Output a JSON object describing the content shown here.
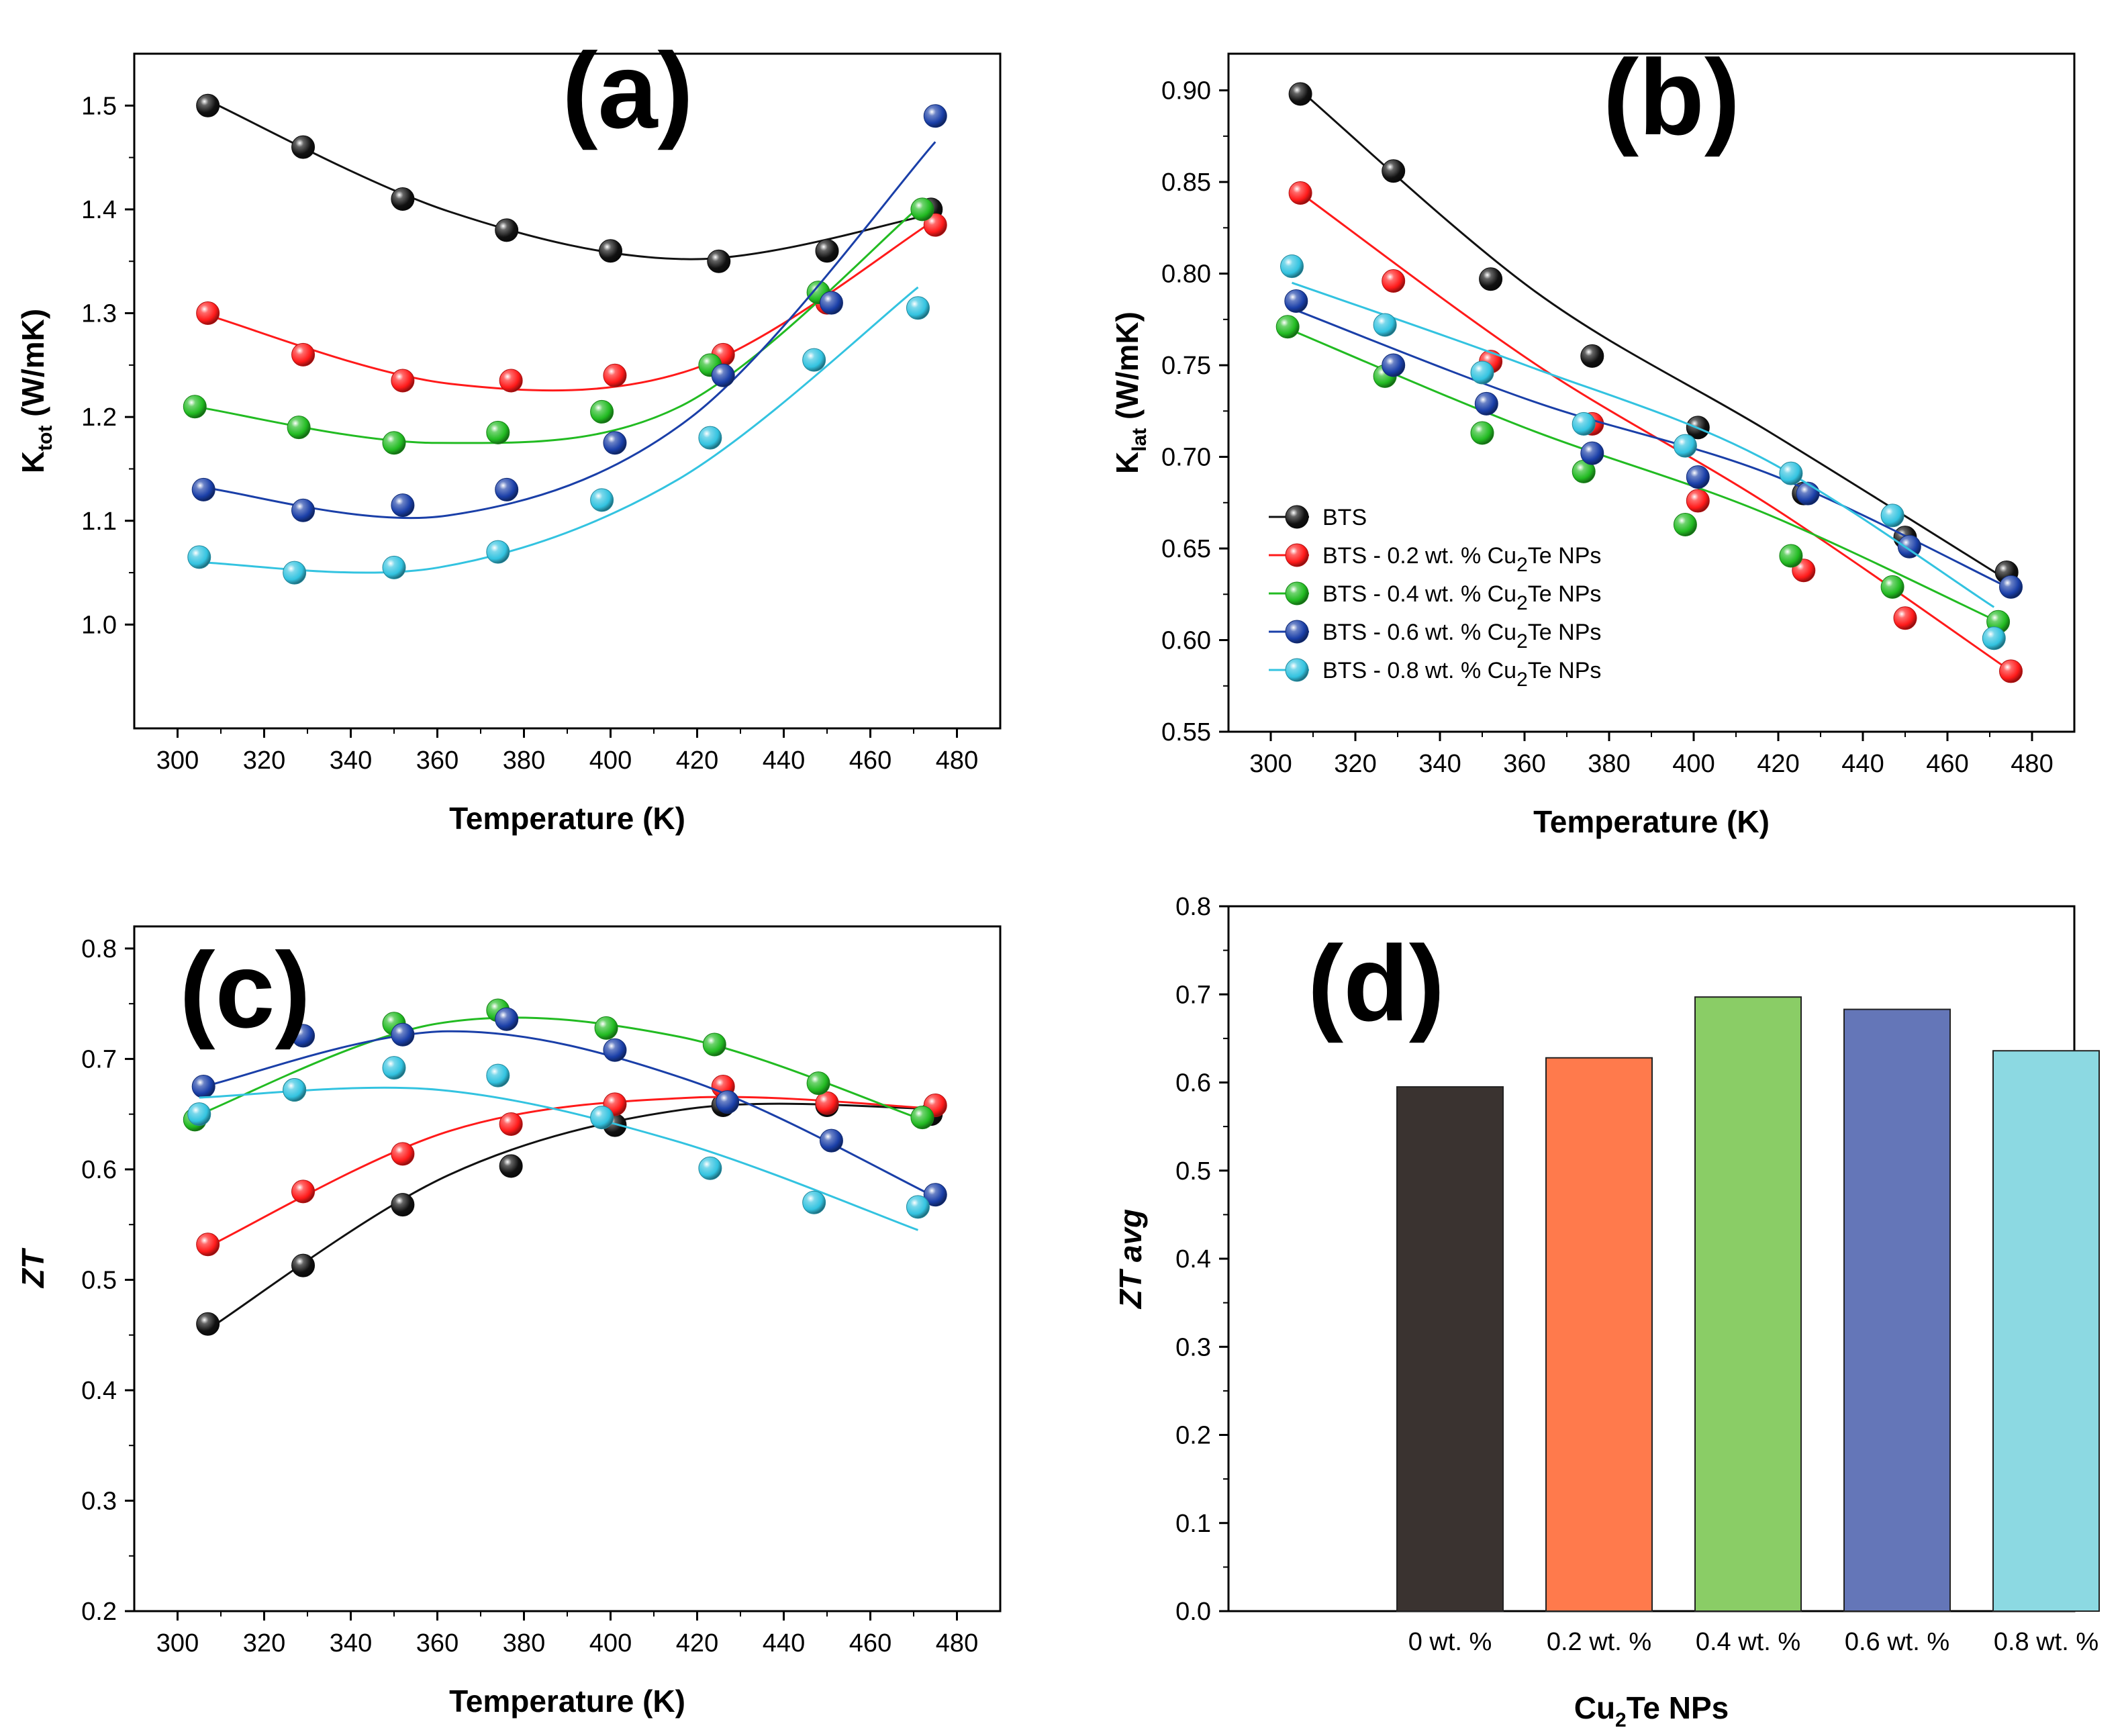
{
  "chart_data": [
    {
      "panel": "a",
      "type": "scatter",
      "panel_label": "(a)",
      "xlabel": "Temperature (K)",
      "ylabel_main": "K",
      "ylabel_sub": "tot",
      "ylabel_unit": " (W/mK)",
      "xlim": [
        290,
        490
      ],
      "ylim": [
        0.9,
        1.55
      ],
      "xticks": [
        300,
        320,
        340,
        360,
        380,
        400,
        420,
        440,
        460,
        480
      ],
      "yticks": [
        1.0,
        1.1,
        1.2,
        1.3,
        1.4,
        1.5
      ],
      "ytick_labels": [
        "1.0",
        "1.1",
        "1.2",
        "1.3",
        "1.4",
        "1.5"
      ],
      "series": [
        {
          "name": "BTS",
          "color": "#111111",
          "x": [
            307,
            329,
            352,
            376,
            400,
            425,
            450,
            474
          ],
          "y": [
            1.5,
            1.46,
            1.41,
            1.38,
            1.36,
            1.35,
            1.36,
            1.4
          ],
          "fit_y": [
            1.505,
            1.398,
            1.352,
            1.395
          ]
        },
        {
          "name": "BTS - 0.2 wt. % Cu2Te NPs",
          "color": "#ff1a1a",
          "x": [
            307,
            329,
            352,
            377,
            401,
            426,
            450,
            475
          ],
          "y": [
            1.3,
            1.26,
            1.235,
            1.235,
            1.24,
            1.26,
            1.31,
            1.385
          ],
          "fit_y": [
            1.298,
            1.232,
            1.246,
            1.39
          ]
        },
        {
          "name": "BTS - 0.4 wt. % Cu2Te NPs",
          "color": "#22bb22",
          "x": [
            304,
            328,
            350,
            374,
            398,
            423,
            448,
            472
          ],
          "y": [
            1.21,
            1.19,
            1.175,
            1.185,
            1.205,
            1.25,
            1.32,
            1.4
          ],
          "fit_y": [
            1.21,
            1.175,
            1.21,
            1.405
          ]
        },
        {
          "name": "BTS - 0.6 wt. % Cu2Te NPs",
          "color": "#1a3fa8",
          "x": [
            306,
            329,
            352,
            376,
            401,
            426,
            451,
            475
          ],
          "y": [
            1.13,
            1.11,
            1.115,
            1.13,
            1.175,
            1.24,
            1.31,
            1.49
          ],
          "fit_y": [
            1.132,
            1.105,
            1.2,
            1.465
          ]
        },
        {
          "name": "BTS - 0.8 wt. % Cu2Te NPs",
          "color": "#33c3e0",
          "x": [
            305,
            327,
            350,
            374,
            398,
            423,
            447,
            471
          ],
          "y": [
            1.065,
            1.05,
            1.055,
            1.07,
            1.12,
            1.18,
            1.255,
            1.305
          ],
          "fit_y": [
            1.06,
            1.055,
            1.14,
            1.325
          ]
        }
      ]
    },
    {
      "panel": "b",
      "type": "scatter",
      "panel_label": "(b)",
      "xlabel": "Temperature (K)",
      "ylabel_main": "K",
      "ylabel_sub": "lat",
      "ylabel_unit": "  (W/mK)",
      "xlim": [
        290,
        490
      ],
      "ylim": [
        0.55,
        0.92
      ],
      "xticks": [
        300,
        320,
        340,
        360,
        380,
        400,
        420,
        440,
        460,
        480
      ],
      "yticks": [
        0.55,
        0.6,
        0.65,
        0.7,
        0.75,
        0.8,
        0.85,
        0.9
      ],
      "ytick_labels": [
        "0.55",
        "0.60",
        "0.65",
        "0.70",
        "0.75",
        "0.80",
        "0.85",
        "0.90"
      ],
      "legend": {
        "placement": "lower-left",
        "entries": [
          {
            "prefix": "BTS",
            "sub": "",
            "suffix": ""
          },
          {
            "prefix": "BTS - 0.2 wt. % Cu",
            "sub": "2",
            "suffix": "Te NPs"
          },
          {
            "prefix": "BTS - 0.4 wt. % Cu",
            "sub": "2",
            "suffix": "Te NPs"
          },
          {
            "prefix": "BTS - 0.6 wt. % Cu",
            "sub": "2",
            "suffix": "Te NPs"
          },
          {
            "prefix": "BTS - 0.8 wt. % Cu",
            "sub": "2",
            "suffix": "Te NPs"
          }
        ]
      },
      "series": [
        {
          "name": "BTS",
          "color": "#111111",
          "x": [
            307,
            329,
            352,
            376,
            401,
            426,
            450,
            474
          ],
          "y": [
            0.898,
            0.856,
            0.797,
            0.755,
            0.716,
            0.68,
            0.656,
            0.637
          ],
          "fit_y": [
            0.9,
            0.79,
            0.713,
            0.633
          ]
        },
        {
          "name": "BTS - 0.2 wt. % Cu2Te NPs",
          "color": "#ff1a1a",
          "x": [
            307,
            329,
            352,
            376,
            401,
            426,
            450,
            475
          ],
          "y": [
            0.844,
            0.796,
            0.752,
            0.718,
            0.676,
            0.638,
            0.612,
            0.583
          ],
          "fit_y": [
            0.844,
            0.75,
            0.672,
            0.583
          ]
        },
        {
          "name": "BTS - 0.4 wt. % Cu2Te NPs",
          "color": "#22bb22",
          "x": [
            304,
            327,
            350,
            374,
            398,
            423,
            447,
            472
          ],
          "y": [
            0.771,
            0.744,
            0.713,
            0.692,
            0.663,
            0.646,
            0.629,
            0.61
          ],
          "fit_y": [
            0.77,
            0.716,
            0.67,
            0.61
          ]
        },
        {
          "name": "BTS - 0.6 wt. % Cu2Te NPs",
          "color": "#1a3fa8",
          "x": [
            306,
            329,
            351,
            376,
            401,
            427,
            451,
            475
          ],
          "y": [
            0.785,
            0.75,
            0.729,
            0.702,
            0.689,
            0.68,
            0.651,
            0.629
          ],
          "fit_y": [
            0.78,
            0.73,
            0.69,
            0.628
          ]
        },
        {
          "name": "BTS - 0.8 wt. % Cu2Te NPs",
          "color": "#33c3e0",
          "x": [
            305,
            327,
            350,
            374,
            398,
            423,
            447,
            471
          ],
          "y": [
            0.804,
            0.772,
            0.746,
            0.718,
            0.706,
            0.691,
            0.668,
            0.601
          ],
          "fit_y": [
            0.795,
            0.75,
            0.7,
            0.618
          ]
        }
      ]
    },
    {
      "panel": "c",
      "type": "scatter",
      "panel_label": "(c)",
      "xlabel": "Temperature (K)",
      "ylabel_main": "ZT",
      "ylabel_sub": "",
      "ylabel_unit": "",
      "xlim": [
        290,
        490
      ],
      "ylim": [
        0.2,
        0.82
      ],
      "xticks": [
        300,
        320,
        340,
        360,
        380,
        400,
        420,
        440,
        460,
        480
      ],
      "yticks": [
        0.2,
        0.3,
        0.4,
        0.5,
        0.6,
        0.7,
        0.8
      ],
      "ytick_labels": [
        "0.2",
        "0.3",
        "0.4",
        "0.5",
        "0.6",
        "0.7",
        "0.8"
      ],
      "series": [
        {
          "name": "BTS",
          "color": "#111111",
          "x": [
            307,
            329,
            352,
            377,
            401,
            426,
            450,
            474
          ],
          "y": [
            0.46,
            0.513,
            0.568,
            0.603,
            0.64,
            0.658,
            0.658,
            0.65
          ],
          "fit_y": [
            0.455,
            0.595,
            0.655,
            0.655
          ]
        },
        {
          "name": "BTS - 0.2 wt. % Cu2Te NPs",
          "color": "#ff1a1a",
          "x": [
            307,
            329,
            352,
            377,
            401,
            426,
            450,
            475
          ],
          "y": [
            0.532,
            0.58,
            0.614,
            0.641,
            0.659,
            0.675,
            0.66,
            0.658
          ],
          "fit_y": [
            0.53,
            0.635,
            0.665,
            0.655
          ]
        },
        {
          "name": "BTS - 0.4 wt. % Cu2Te NPs",
          "color": "#22bb22",
          "x": [
            304,
            327,
            350,
            374,
            399,
            424,
            448,
            472
          ],
          "y": [
            0.645,
            0.672,
            0.732,
            0.744,
            0.728,
            0.713,
            0.678,
            0.647
          ],
          "fit_y": [
            0.648,
            0.732,
            0.72,
            0.645
          ]
        },
        {
          "name": "BTS - 0.6 wt. % Cu2Te NPs",
          "color": "#1a3fa8",
          "x": [
            306,
            329,
            352,
            376,
            401,
            427,
            451,
            475
          ],
          "y": [
            0.675,
            0.721,
            0.722,
            0.736,
            0.708,
            0.661,
            0.626,
            0.577
          ],
          "fit_y": [
            0.675,
            0.725,
            0.68,
            0.575
          ]
        },
        {
          "name": "BTS - 0.8 wt. % Cu2Te NPs",
          "color": "#33c3e0",
          "x": [
            305,
            327,
            350,
            374,
            398,
            423,
            447,
            471
          ],
          "y": [
            0.65,
            0.672,
            0.692,
            0.685,
            0.647,
            0.601,
            0.57,
            0.566
          ],
          "fit_y": [
            0.665,
            0.672,
            0.625,
            0.545
          ]
        }
      ]
    },
    {
      "panel": "d",
      "type": "bar",
      "panel_label": "(d)",
      "xlabel_main": "Cu",
      "xlabel_sub": "2",
      "xlabel_rest": "Te NPs",
      "ylabel": "ZT avg",
      "ylim": [
        0,
        0.8
      ],
      "yticks": [
        0.0,
        0.1,
        0.2,
        0.3,
        0.4,
        0.5,
        0.6,
        0.7,
        0.8
      ],
      "ytick_labels": [
        "0.0",
        "0.1",
        "0.2",
        "0.3",
        "0.4",
        "0.5",
        "0.6",
        "0.7",
        "0.8"
      ],
      "categories": [
        "0 wt. %",
        "0.2 wt. %",
        "0.4 wt. %",
        "0.6 wt. %",
        "0.8 wt. %"
      ],
      "values": [
        0.595,
        0.628,
        0.697,
        0.683,
        0.636
      ],
      "colors": [
        "#3a3330",
        "#ff7a4c",
        "#8acd66",
        "#6476b8",
        "#8cd9e2"
      ]
    }
  ]
}
